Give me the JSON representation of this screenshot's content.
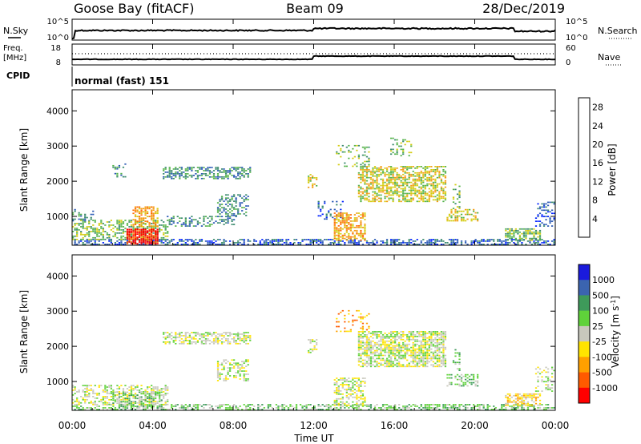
{
  "header": {
    "station": "Goose Bay (fitACF)",
    "beam": "Beam 09",
    "date": "28/Dec/2019"
  },
  "top_panels": {
    "nsky_label": "N.Sky",
    "nsky_tick_top": "10^5",
    "nsky_tick_bottom": "10^0",
    "nsearch_label": "N.Search",
    "nsearch_tick_top": "10^5",
    "nsearch_tick_bottom": "10^0",
    "freq_label_1": "Freq.",
    "freq_label_2": "[MHz]",
    "freq_tick_top": "18",
    "freq_tick_bottom": "8",
    "nave_label": "Nave",
    "nave_tick_top": "60",
    "nave_tick_bottom": "0",
    "cpid_label": "CPID",
    "cpid_value": "normal (fast) 151"
  },
  "chart_data": [
    {
      "type": "heatmap",
      "name": "power",
      "ylabel": "Slant Range [km]",
      "ylim": [
        180,
        4600
      ],
      "yticks": [
        "1000",
        "2000",
        "3000",
        "4000"
      ],
      "xlim": [
        0,
        24
      ],
      "xticks": [
        "00:00",
        "04:00",
        "08:00",
        "12:00",
        "16:00",
        "20:00",
        "00:00"
      ],
      "colorbar": {
        "label": "Power [dB]",
        "ticks": [
          "4",
          "8",
          "12",
          "16",
          "20",
          "24",
          "28"
        ],
        "range": [
          0,
          30
        ],
        "colors": [
          "#0022ff",
          "#2a59b5",
          "#3a8a6e",
          "#55b34a",
          "#d4cc10",
          "#f39c12",
          "#ff6a00",
          "#ff0000"
        ]
      },
      "regions": [
        {
          "t0": 0.0,
          "t1": 24.0,
          "r0": 180,
          "r1": 320,
          "level": 1,
          "density": 0.55
        },
        {
          "t0": 0.0,
          "t1": 4.8,
          "r0": 320,
          "r1": 900,
          "level": 3,
          "density": 0.5
        },
        {
          "t0": 2.7,
          "t1": 4.3,
          "r0": 200,
          "r1": 620,
          "level": 7,
          "density": 0.9
        },
        {
          "t0": 3.0,
          "t1": 4.2,
          "r0": 700,
          "r1": 1250,
          "level": 5,
          "density": 0.55
        },
        {
          "t0": 0.0,
          "t1": 1.2,
          "r0": 850,
          "r1": 1200,
          "level": 2,
          "density": 0.3
        },
        {
          "t0": 4.8,
          "t1": 8.2,
          "r0": 700,
          "r1": 1000,
          "level": 2,
          "density": 0.35
        },
        {
          "t0": 4.5,
          "t1": 8.9,
          "r0": 2050,
          "r1": 2400,
          "level": 2,
          "density": 0.55
        },
        {
          "t0": 7.2,
          "t1": 8.8,
          "r0": 1000,
          "r1": 1600,
          "level": 2,
          "density": 0.45
        },
        {
          "t0": 11.7,
          "t1": 12.2,
          "r0": 1800,
          "r1": 2200,
          "level": 4,
          "density": 0.5
        },
        {
          "t0": 12.2,
          "t1": 13.5,
          "r0": 900,
          "r1": 1400,
          "level": 1,
          "density": 0.25
        },
        {
          "t0": 13.0,
          "t1": 14.6,
          "r0": 300,
          "r1": 1100,
          "level": 5,
          "density": 0.6
        },
        {
          "t0": 14.2,
          "t1": 18.6,
          "r0": 1400,
          "r1": 2400,
          "level": 4,
          "density": 0.6
        },
        {
          "t0": 13.2,
          "t1": 14.8,
          "r0": 2400,
          "r1": 3000,
          "level": 3,
          "density": 0.25
        },
        {
          "t0": 15.8,
          "t1": 16.8,
          "r0": 2700,
          "r1": 3200,
          "level": 3,
          "density": 0.3
        },
        {
          "t0": 18.6,
          "t1": 20.2,
          "r0": 850,
          "r1": 1200,
          "level": 4,
          "density": 0.5
        },
        {
          "t0": 18.9,
          "t1": 19.3,
          "r0": 1200,
          "r1": 1900,
          "level": 3,
          "density": 0.35
        },
        {
          "t0": 21.5,
          "t1": 23.3,
          "r0": 300,
          "r1": 650,
          "level": 3,
          "density": 0.65
        },
        {
          "t0": 23.0,
          "t1": 24.0,
          "r0": 700,
          "r1": 1400,
          "level": 1,
          "density": 0.35
        },
        {
          "t0": 2.0,
          "t1": 2.8,
          "r0": 2100,
          "r1": 2500,
          "level": 2,
          "density": 0.25
        }
      ]
    },
    {
      "type": "heatmap",
      "name": "velocity",
      "ylabel": "Slant Range [km]",
      "ylim": [
        180,
        4600
      ],
      "yticks": [
        "1000",
        "2000",
        "3000",
        "4000"
      ],
      "xlim": [
        0,
        24
      ],
      "xticks": [
        "00:00",
        "04:00",
        "08:00",
        "12:00",
        "16:00",
        "20:00",
        "00:00"
      ],
      "xlabel": "Time UT",
      "colorbar": {
        "label": "Velocity [m s^-1]",
        "ticks": [
          "1000",
          "500",
          "100",
          "25",
          "-25",
          "-100",
          "-500",
          "-1000"
        ],
        "colors": [
          "#1a1adc",
          "#3b64b0",
          "#3e9a5a",
          "#5fd23a",
          "#c8c8bc",
          "#ffe400",
          "#ffa000",
          "#ff5a00",
          "#ff0000"
        ]
      },
      "regions": [
        {
          "t0": 0.0,
          "t1": 24.0,
          "r0": 180,
          "r1": 320,
          "level": 3,
          "density": 0.5
        },
        {
          "t0": 0.0,
          "t1": 4.8,
          "r0": 320,
          "r1": 900,
          "level": 4,
          "density": 0.45
        },
        {
          "t0": 2.0,
          "t1": 4.5,
          "r0": 220,
          "r1": 700,
          "level": 3,
          "density": 0.5
        },
        {
          "t0": 4.5,
          "t1": 8.9,
          "r0": 2050,
          "r1": 2400,
          "level": 4,
          "density": 0.55
        },
        {
          "t0": 7.2,
          "t1": 8.8,
          "r0": 1000,
          "r1": 1600,
          "level": 4,
          "density": 0.45
        },
        {
          "t0": 11.7,
          "t1": 12.2,
          "r0": 1800,
          "r1": 2200,
          "level": 4,
          "density": 0.5
        },
        {
          "t0": 13.0,
          "t1": 14.6,
          "r0": 300,
          "r1": 1100,
          "level": 4,
          "density": 0.55
        },
        {
          "t0": 14.2,
          "t1": 18.6,
          "r0": 1400,
          "r1": 2400,
          "level": 4,
          "density": 0.7
        },
        {
          "t0": 18.6,
          "t1": 20.2,
          "r0": 850,
          "r1": 1200,
          "level": 3,
          "density": 0.5
        },
        {
          "t0": 18.9,
          "t1": 19.3,
          "r0": 1200,
          "r1": 1900,
          "level": 3,
          "density": 0.35
        },
        {
          "t0": 21.5,
          "t1": 23.3,
          "r0": 300,
          "r1": 650,
          "level": 5,
          "density": 0.6
        },
        {
          "t0": 23.0,
          "t1": 24.0,
          "r0": 700,
          "r1": 1400,
          "level": 4,
          "density": 0.35
        },
        {
          "t0": 13.2,
          "t1": 14.8,
          "r0": 2400,
          "r1": 3000,
          "level": 6,
          "density": 0.2
        }
      ]
    }
  ]
}
